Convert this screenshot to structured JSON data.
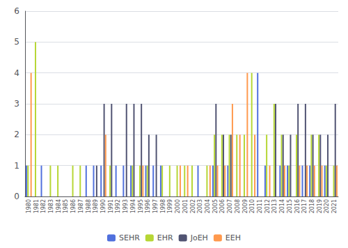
{
  "chart_data": {
    "type": "bar",
    "categories": [
      "1980",
      "1981",
      "1982",
      "1983",
      "1984",
      "1985",
      "1986",
      "1987",
      "1988",
      "1989",
      "1990",
      "1991",
      "1992",
      "1993",
      "1994",
      "1995",
      "1996",
      "1997",
      "1998",
      "1999",
      "2000",
      "2001",
      "2002",
      "2003",
      "2004",
      "2005",
      "2006",
      "2007",
      "2008",
      "2009",
      "2010",
      "2011",
      "2012",
      "2013",
      "2014",
      "2015",
      "2016",
      "2017",
      "2018",
      "2019",
      "2020",
      "2021"
    ],
    "series": [
      {
        "name": "SEHR",
        "values": [
          1,
          0,
          1,
          0,
          0,
          0,
          0,
          0,
          1,
          1,
          1,
          0,
          1,
          1,
          1,
          0,
          1,
          1,
          1,
          0,
          0,
          0,
          0,
          1,
          0,
          1,
          0,
          1,
          0,
          0,
          0,
          4,
          1,
          0,
          1,
          1,
          0,
          1,
          1,
          0,
          1,
          0
        ]
      },
      {
        "name": "EHR",
        "values": [
          1,
          5,
          0,
          1,
          1,
          0,
          1,
          1,
          0,
          0,
          0,
          1,
          0,
          0,
          1,
          1,
          1,
          0,
          1,
          1,
          1,
          1,
          1,
          0,
          1,
          2,
          2,
          2,
          2,
          2,
          4,
          0,
          2,
          3,
          2,
          1,
          2,
          0,
          2,
          2,
          1,
          1
        ]
      },
      {
        "name": "JoEH",
        "values": [
          0,
          0,
          0,
          0,
          0,
          0,
          0,
          0,
          0,
          1,
          3,
          3,
          0,
          3,
          3,
          3,
          2,
          2,
          0,
          0,
          0,
          0,
          0,
          0,
          0,
          3,
          2,
          2,
          0,
          0,
          0,
          0,
          0,
          3,
          2,
          2,
          3,
          3,
          2,
          2,
          2,
          3
        ]
      },
      {
        "name": "EEH",
        "values": [
          4,
          0,
          0,
          0,
          0,
          0,
          0,
          0,
          0,
          0,
          2,
          0,
          0,
          0,
          0,
          1,
          0,
          0,
          0,
          0,
          1,
          1,
          0,
          0,
          1,
          1,
          1,
          3,
          2,
          4,
          2,
          0,
          1,
          0,
          1,
          0,
          1,
          1,
          1,
          1,
          0,
          1
        ]
      }
    ],
    "ylim": [
      0,
      6
    ],
    "yticks": [
      0,
      1,
      2,
      3,
      4,
      5,
      6
    ],
    "grid": true,
    "legend": "bottom"
  }
}
